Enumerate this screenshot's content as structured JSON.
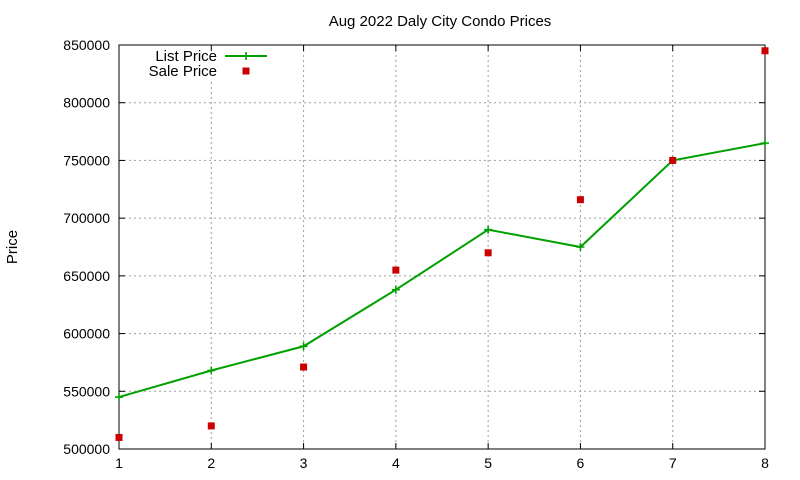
{
  "chart_data": {
    "type": "line",
    "title": "Aug 2022 Daly City Condo Prices",
    "xlabel": "",
    "ylabel": "Price",
    "xlim": [
      1,
      8
    ],
    "ylim": [
      500000,
      850000
    ],
    "x_ticks": [
      1,
      2,
      3,
      4,
      5,
      6,
      7,
      8
    ],
    "y_ticks": [
      500000,
      550000,
      600000,
      650000,
      700000,
      750000,
      800000,
      850000
    ],
    "grid": true,
    "legend_position": "top-left",
    "series": [
      {
        "name": "List Price",
        "style": "linespoints",
        "marker": "plus",
        "color": "#00a000",
        "x": [
          1,
          2,
          3,
          4,
          5,
          6,
          7,
          8
        ],
        "values": [
          545000,
          568000,
          589000,
          638000,
          690000,
          675000,
          750000,
          765000
        ]
      },
      {
        "name": "Sale Price",
        "style": "points",
        "marker": "square",
        "color": "#cc0000",
        "x": [
          1,
          2,
          3,
          4,
          5,
          6,
          7,
          8
        ],
        "values": [
          510000,
          520000,
          571000,
          655000,
          670000,
          716000,
          750000,
          845000
        ]
      }
    ]
  }
}
